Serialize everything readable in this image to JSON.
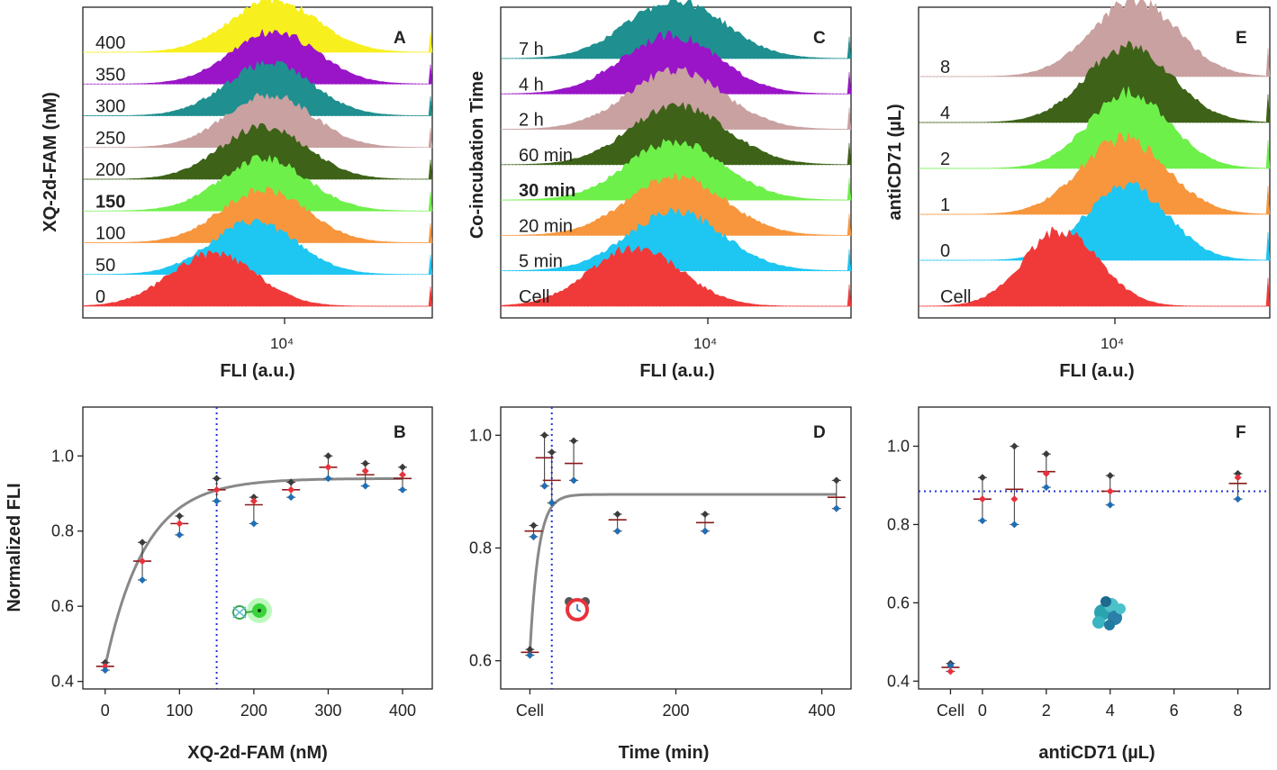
{
  "panels": {
    "A": {
      "letter": "A",
      "type": "histogram-stack",
      "ylabel": "XQ-2d-FAM (nM)",
      "xlabel": "FLI (a.u.)",
      "xtick": "10⁴",
      "highlight": "150",
      "traces": [
        {
          "label": "0",
          "color": "#f03a3a",
          "peak_log": 3.86,
          "width": 0.17,
          "height": 0.95
        },
        {
          "label": "50",
          "color": "#1ec6f2",
          "peak_log": 4.02,
          "width": 0.17,
          "height": 0.95
        },
        {
          "label": "100",
          "color": "#f7963d",
          "peak_log": 4.06,
          "width": 0.17,
          "height": 0.95
        },
        {
          "label": "150",
          "color": "#6ef04a",
          "peak_log": 4.06,
          "width": 0.17,
          "height": 0.95
        },
        {
          "label": "200",
          "color": "#3d6218",
          "peak_log": 4.06,
          "width": 0.17,
          "height": 0.95
        },
        {
          "label": "250",
          "color": "#c9a1a1",
          "peak_log": 4.08,
          "width": 0.17,
          "height": 0.95
        },
        {
          "label": "300",
          "color": "#1f8f8f",
          "peak_log": 4.08,
          "width": 0.17,
          "height": 0.95
        },
        {
          "label": "350",
          "color": "#9a14c8",
          "peak_log": 4.1,
          "width": 0.17,
          "height": 0.95
        },
        {
          "label": "400",
          "color": "#f7f01e",
          "peak_log": 4.1,
          "width": 0.17,
          "height": 0.95
        }
      ]
    },
    "C": {
      "letter": "C",
      "type": "histogram-stack",
      "ylabel": "Co-incubation Time",
      "xlabel": "FLI (a.u.)",
      "xtick": "10⁴",
      "highlight": "30 min",
      "traces": [
        {
          "label": "Cell",
          "color": "#f03a3a",
          "peak_log": 3.8,
          "width": 0.17,
          "height": 0.95
        },
        {
          "label": "5 min",
          "color": "#1ec6f2",
          "peak_log": 3.95,
          "width": 0.18,
          "height": 0.95
        },
        {
          "label": "20 min",
          "color": "#f7963d",
          "peak_log": 3.95,
          "width": 0.18,
          "height": 0.95
        },
        {
          "label": "30 min",
          "color": "#6ef04a",
          "peak_log": 3.95,
          "width": 0.18,
          "height": 0.95
        },
        {
          "label": "60 min",
          "color": "#3d6218",
          "peak_log": 3.96,
          "width": 0.18,
          "height": 0.95
        },
        {
          "label": "2 h",
          "color": "#c9a1a1",
          "peak_log": 3.95,
          "width": 0.18,
          "height": 0.95
        },
        {
          "label": "4 h",
          "color": "#9a14c8",
          "peak_log": 3.93,
          "width": 0.18,
          "height": 0.95
        },
        {
          "label": "7 h",
          "color": "#1f8f8f",
          "peak_log": 3.95,
          "width": 0.18,
          "height": 0.95
        }
      ]
    },
    "E": {
      "letter": "E",
      "type": "histogram-stack",
      "ylabel": "antiCD71 (µL)",
      "xlabel": "FLI (a.u.)",
      "xtick": "10⁴",
      "highlight": "",
      "traces": [
        {
          "label": "Cell",
          "color": "#f03a3a",
          "peak_log": 3.88,
          "width": 0.14,
          "height": 0.95
        },
        {
          "label": "0",
          "color": "#1ec6f2",
          "peak_log": 4.12,
          "width": 0.15,
          "height": 0.95
        },
        {
          "label": "1",
          "color": "#f7963d",
          "peak_log": 4.11,
          "width": 0.16,
          "height": 0.95
        },
        {
          "label": "2",
          "color": "#6ef04a",
          "peak_log": 4.13,
          "width": 0.15,
          "height": 0.95
        },
        {
          "label": "4",
          "color": "#3d6218",
          "peak_log": 4.13,
          "width": 0.16,
          "height": 0.95
        },
        {
          "label": "8",
          "color": "#c9a1a1",
          "peak_log": 4.15,
          "width": 0.16,
          "height": 0.95
        }
      ]
    },
    "B": {
      "letter": "B",
      "type": "scatter",
      "ylabel": "Normalized FLI",
      "xlabel": "XQ-2d-FAM (nM)",
      "xticks": [
        0,
        100,
        200,
        300,
        400
      ],
      "yticks": [
        0.4,
        0.6,
        0.8,
        1.0
      ],
      "xlim": [
        -30,
        440
      ],
      "ylim": [
        0.38,
        1.13
      ],
      "vline_x": 150,
      "points": [
        {
          "x": 0,
          "mean": 0.44,
          "black": 0.45,
          "red": 0.44,
          "blue": 0.43
        },
        {
          "x": 50,
          "mean": 0.72,
          "black": 0.77,
          "red": 0.72,
          "blue": 0.67
        },
        {
          "x": 100,
          "mean": 0.82,
          "black": 0.84,
          "red": 0.82,
          "blue": 0.79
        },
        {
          "x": 150,
          "mean": 0.91,
          "black": 0.94,
          "red": 0.91,
          "blue": 0.88
        },
        {
          "x": 200,
          "mean": 0.87,
          "black": 0.89,
          "red": 0.88,
          "blue": 0.82
        },
        {
          "x": 250,
          "mean": 0.91,
          "black": 0.93,
          "red": 0.91,
          "blue": 0.89
        },
        {
          "x": 300,
          "mean": 0.97,
          "black": 1.0,
          "red": 0.97,
          "blue": 0.94
        },
        {
          "x": 350,
          "mean": 0.95,
          "black": 0.98,
          "red": 0.96,
          "blue": 0.92
        },
        {
          "x": 400,
          "mean": 0.94,
          "black": 0.97,
          "red": 0.95,
          "blue": 0.91
        }
      ],
      "fit": {
        "y0": 0.44,
        "ymax": 0.94,
        "k": 0.0185,
        "x0": 0
      },
      "icon": "aptamer-probe-icon"
    },
    "D": {
      "letter": "D",
      "type": "scatter",
      "ylabel": "",
      "xlabel": "Time (min)",
      "xticks": [
        0,
        200,
        400
      ],
      "xticklabels": [
        "Cell",
        "200",
        "400"
      ],
      "yticks": [
        0.6,
        0.8,
        1.0
      ],
      "xlim": [
        -40,
        440
      ],
      "ylim": [
        0.55,
        1.05
      ],
      "vline_x": 30,
      "points": [
        {
          "x": 0,
          "mean": 0.615,
          "black": 0.62,
          "red": 0.61,
          "blue": 0.61
        },
        {
          "x": 5,
          "mean": 0.83,
          "black": 0.84,
          "red": 0.82,
          "blue": 0.82
        },
        {
          "x": 20,
          "mean": 0.96,
          "black": 1.0,
          "red": 0.91,
          "blue": 0.91
        },
        {
          "x": 30,
          "mean": 0.92,
          "black": 0.97,
          "red": 0.88,
          "blue": 0.88
        },
        {
          "x": 60,
          "mean": 0.95,
          "black": 0.99,
          "red": 0.92,
          "blue": 0.92
        },
        {
          "x": 120,
          "mean": 0.85,
          "black": 0.86,
          "red": 0.83,
          "blue": 0.83
        },
        {
          "x": 240,
          "mean": 0.845,
          "black": 0.86,
          "red": 0.83,
          "blue": 0.83
        },
        {
          "x": 420,
          "mean": 0.89,
          "black": 0.92,
          "red": 0.87,
          "blue": 0.87
        }
      ],
      "fit": {
        "y0": 0.615,
        "ymax": 0.895,
        "k": 0.085,
        "x0": 0
      },
      "icon": "alarm-clock-icon"
    },
    "F": {
      "letter": "F",
      "type": "scatter",
      "ylabel": "",
      "xlabel": "antiCD71 (µL)",
      "xticks": [
        -1,
        0,
        2,
        4,
        6,
        8
      ],
      "xticklabels": [
        "Cell",
        "0",
        "2",
        "4",
        "6",
        "8"
      ],
      "yticks": [
        0.4,
        0.6,
        0.8,
        1.0
      ],
      "xlim": [
        -2.0,
        9.0
      ],
      "ylim": [
        0.38,
        1.1
      ],
      "hline_y": 0.885,
      "points": [
        {
          "x": -1,
          "mean": 0.435,
          "black": 0.445,
          "red": 0.425,
          "blue": 0.44
        },
        {
          "x": 0,
          "mean": 0.865,
          "black": 0.92,
          "red": 0.865,
          "blue": 0.81
        },
        {
          "x": 1,
          "mean": 0.89,
          "black": 1.0,
          "red": 0.865,
          "blue": 0.8
        },
        {
          "x": 2,
          "mean": 0.935,
          "black": 0.98,
          "red": 0.93,
          "blue": 0.895
        },
        {
          "x": 4,
          "mean": 0.885,
          "black": 0.925,
          "red": 0.885,
          "blue": 0.85
        },
        {
          "x": 8,
          "mean": 0.905,
          "black": 0.93,
          "red": 0.92,
          "blue": 0.865
        }
      ],
      "icon": "cell-cluster-icon"
    }
  },
  "colors": {
    "axis": "#222222",
    "fit_line": "#888888",
    "dotted": "#2233dd",
    "highlight_text": "#1a1acc",
    "dot_black": "#3b3b3b",
    "dot_red": "#e8323c",
    "dot_blue": "#1f6fb5",
    "mean_bar": "#8b1a1a"
  }
}
